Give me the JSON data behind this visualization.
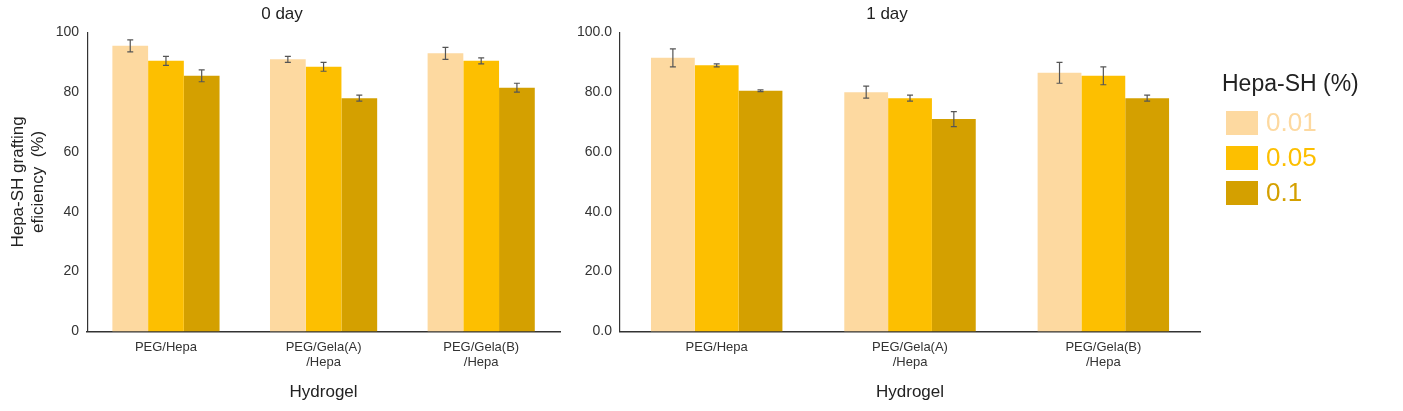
{
  "chart_data": [
    {
      "type": "bar",
      "title": "0 day",
      "xlabel": "Hydrogel",
      "ylabel": "Hepa-SH grafting\neficiency  (%)",
      "categories": [
        "PEG/Hepa",
        "PEG/Gela(A)\n/Hepa",
        "PEG/Gela(B)\n/Hepa"
      ],
      "ylim": [
        0,
        100
      ],
      "yticks": [
        0,
        20,
        40,
        60,
        80,
        100
      ],
      "grid": false,
      "legend": false,
      "series": [
        {
          "color": "#fdd9a0",
          "values": [
            95.5,
            91,
            93
          ],
          "errors": [
            2,
            1,
            2
          ]
        },
        {
          "color": "#fdbf00",
          "values": [
            90.5,
            88.5,
            90.5
          ],
          "errors": [
            1.5,
            1.5,
            1
          ]
        },
        {
          "color": "#d4a000",
          "values": [
            85.5,
            78,
            81.5
          ],
          "errors": [
            2,
            1,
            1.5
          ]
        }
      ]
    },
    {
      "type": "bar",
      "title": "1 day",
      "xlabel": "Hydrogel",
      "legend_title": "Hepa-SH (%)",
      "categories": [
        "PEG/Hepa",
        "PEG/Gela(A)\n/Hepa",
        "PEG/Gela(B)\n/Hepa"
      ],
      "ylim": [
        0,
        100
      ],
      "yticks": [
        {
          "value": 0,
          "label": "0.0"
        },
        {
          "value": 20,
          "label": "20.0"
        },
        {
          "value": 40,
          "label": "40.0"
        },
        {
          "value": 60,
          "label": "60.0"
        },
        {
          "value": 80,
          "label": "80.0"
        },
        {
          "value": 100,
          "label": "100.0"
        }
      ],
      "grid": false,
      "legend": "right",
      "series": [
        {
          "name": "0.01",
          "color": "#fdd9a0",
          "values": [
            91.5,
            80,
            86.5
          ],
          "errors": [
            3,
            2,
            3.5
          ]
        },
        {
          "name": "0.05",
          "color": "#fdbf00",
          "values": [
            89,
            78,
            85.5
          ],
          "errors": [
            0.5,
            1,
            3
          ]
        },
        {
          "name": "0.1",
          "color": "#d4a000",
          "values": [
            80.5,
            71,
            78
          ],
          "errors": [
            0.3,
            2.5,
            1
          ]
        }
      ]
    }
  ]
}
